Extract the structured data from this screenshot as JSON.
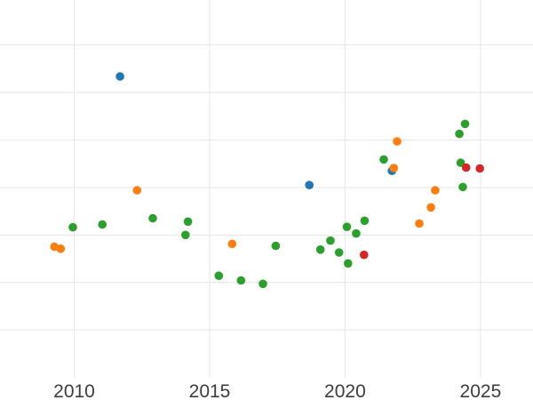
{
  "figure": {
    "background_color": "#ffffff",
    "grid_color": "#e6e6e6",
    "tick_label_color": "#3d3d3d"
  },
  "chart_data": {
    "type": "scatter",
    "title": "",
    "subtitle": "",
    "xlabel": "",
    "ylabel": "",
    "grid": true,
    "legend": "none",
    "xlim": [
      2007.26,
      2026.94
    ],
    "ylim": [
      -1.01,
      6.95
    ],
    "x_ticks": [
      2010,
      2015,
      2020,
      2025
    ],
    "x_tick_labels": [
      "2010",
      "2015",
      "2020",
      "2025"
    ],
    "y_gridlines": [
      0,
      1,
      2,
      3,
      4,
      5,
      6
    ],
    "y_tick_labels_visible": false,
    "y_units_note": "y axis unlabeled in source; values given in gridline units (bottom gridline = 0, one unit per gridline)",
    "marker_radius_px": 4.8,
    "series": [
      {
        "name": "blue",
        "color": "#1f77b4",
        "points": [
          [
            2011.69,
            5.34
          ],
          [
            2018.68,
            3.05
          ],
          [
            2021.73,
            3.35
          ]
        ]
      },
      {
        "name": "orange",
        "color": "#ff7f0e",
        "points": [
          [
            2009.27,
            1.75
          ],
          [
            2009.5,
            1.71
          ],
          [
            2012.32,
            2.94
          ],
          [
            2015.83,
            1.81
          ],
          [
            2021.8,
            3.41
          ],
          [
            2021.92,
            3.97
          ],
          [
            2022.74,
            2.24
          ],
          [
            2023.17,
            2.58
          ],
          [
            2023.33,
            2.94
          ]
        ]
      },
      {
        "name": "green",
        "color": "#2ca02c",
        "points": [
          [
            2009.95,
            2.16
          ],
          [
            2011.04,
            2.22
          ],
          [
            2012.9,
            2.35
          ],
          [
            2014.11,
            2.0
          ],
          [
            2014.2,
            2.28
          ],
          [
            2015.34,
            1.14
          ],
          [
            2016.16,
            1.04
          ],
          [
            2016.97,
            0.97
          ],
          [
            2017.44,
            1.77
          ],
          [
            2019.09,
            1.69
          ],
          [
            2019.46,
            1.88
          ],
          [
            2019.78,
            1.63
          ],
          [
            2020.07,
            2.17
          ],
          [
            2020.11,
            1.4
          ],
          [
            2020.41,
            2.03
          ],
          [
            2020.72,
            2.3
          ],
          [
            2021.43,
            3.59
          ],
          [
            2024.22,
            4.13
          ],
          [
            2024.27,
            3.52
          ],
          [
            2024.35,
            3.01
          ],
          [
            2024.43,
            4.34
          ]
        ]
      },
      {
        "name": "red",
        "color": "#d62728",
        "points": [
          [
            2020.7,
            1.58
          ],
          [
            2024.47,
            3.42
          ],
          [
            2024.98,
            3.4
          ]
        ]
      }
    ]
  }
}
